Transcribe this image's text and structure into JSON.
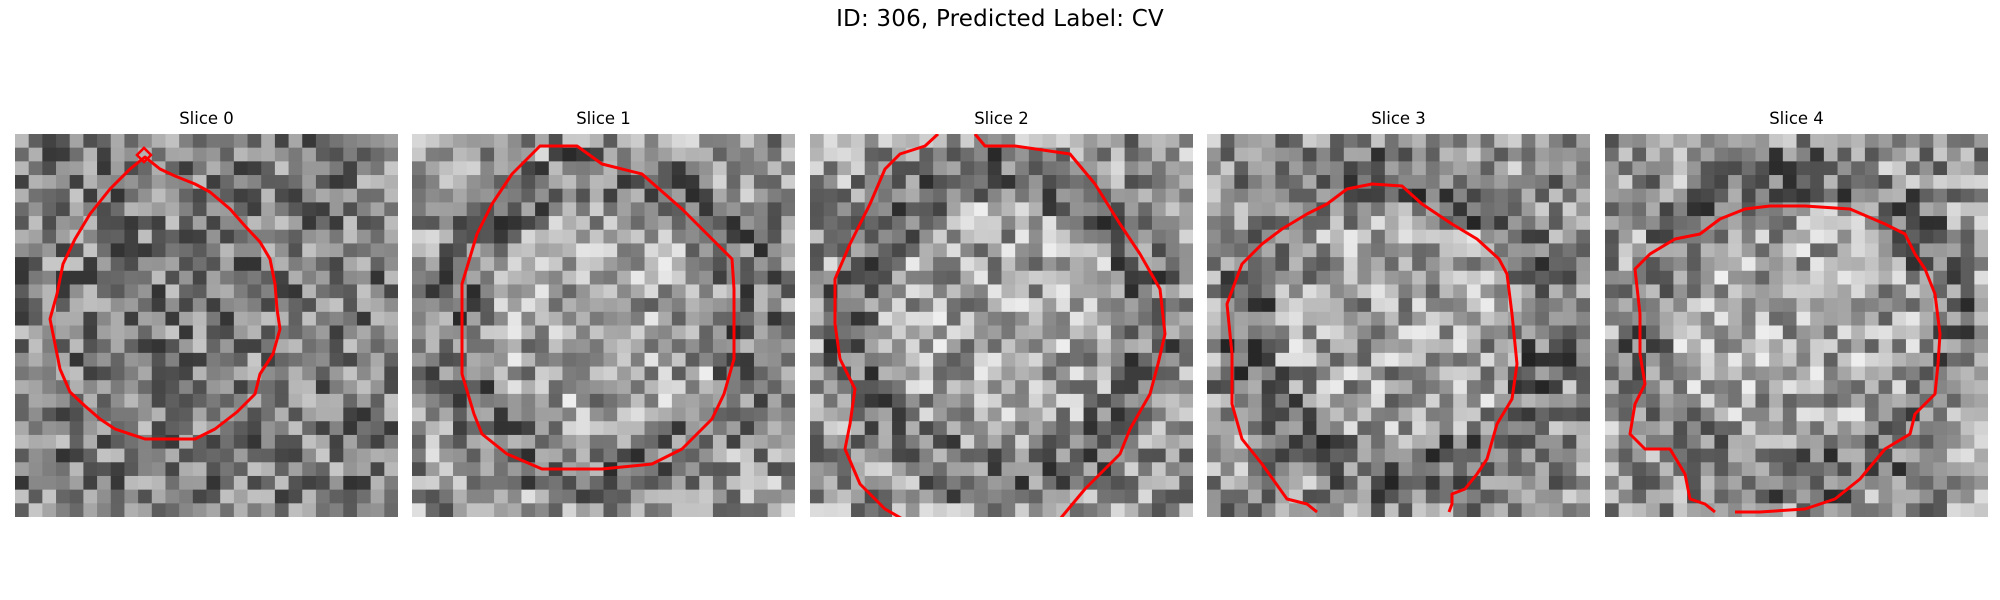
{
  "figure": {
    "title": "ID: 306, Predicted Label: CV",
    "contour_color": "#ff0000",
    "colormap": "grayscale"
  },
  "slices": [
    {
      "title": "Slice 0"
    },
    {
      "title": "Slice 1"
    },
    {
      "title": "Slice 2"
    },
    {
      "title": "Slice 3"
    },
    {
      "title": "Slice 4"
    }
  ]
}
